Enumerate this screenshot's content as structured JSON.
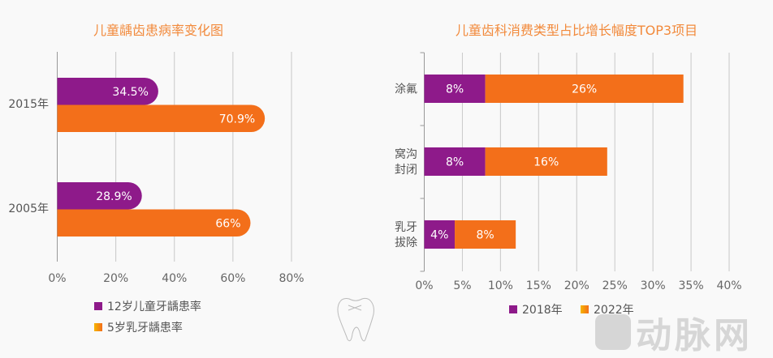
{
  "chart_data": [
    {
      "type": "bar",
      "orientation": "horizontal",
      "title": "儿童龋齿患病率变化图",
      "categories": [
        "2015年",
        "2005年"
      ],
      "series": [
        {
          "name": "12岁儿童牙龋患率",
          "values": [
            34.5,
            28.9
          ],
          "labels": [
            "34.5%",
            "28.9%"
          ],
          "color": "#8e1a8a"
        },
        {
          "name": "5岁乳牙龋患率",
          "values": [
            70.9,
            66
          ],
          "labels": [
            "70.9%",
            "66%"
          ],
          "color": "#f36f1a"
        }
      ],
      "xlim": [
        0,
        80
      ],
      "xticks": [
        "0%",
        "20%",
        "40%",
        "60%",
        "80%"
      ],
      "grid": true,
      "legend": "bottom"
    },
    {
      "type": "bar",
      "orientation": "horizontal",
      "stacked": true,
      "title": "儿童齿科消费类型占比增长幅度TOP3项目",
      "categories": [
        [
          "涂氟"
        ],
        [
          "窝沟",
          "封闭"
        ],
        [
          "乳牙",
          "拔除"
        ]
      ],
      "series": [
        {
          "name": "2018年",
          "values": [
            8,
            8,
            4
          ],
          "labels": [
            "8%",
            "8%",
            "4%"
          ],
          "color": "#8e1a8a"
        },
        {
          "name": "2022年",
          "values": [
            26,
            16,
            8
          ],
          "labels": [
            "26%",
            "16%",
            "8%"
          ],
          "color": "#f36f1a"
        }
      ],
      "xlim": [
        0,
        40
      ],
      "xticks": [
        "0%",
        "5%",
        "10%",
        "15%",
        "20%",
        "25%",
        "30%",
        "35%",
        "40%"
      ],
      "grid": true,
      "legend": "bottom"
    }
  ],
  "watermark": "动脉网"
}
